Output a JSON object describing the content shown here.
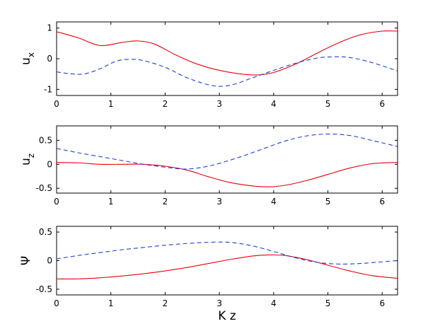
{
  "chart_data": [
    {
      "type": "line",
      "xlabel": "",
      "ylabel": "u",
      "ylabel_sub": "x",
      "xlim": [
        0,
        6.2832
      ],
      "ylim": [
        -1.2,
        1.2
      ],
      "xticks": [
        "0",
        "1",
        "2",
        "3",
        "4",
        "5",
        "6"
      ],
      "yticks": [
        "-1",
        "0",
        "1"
      ],
      "grid": false,
      "series": [
        {
          "style": "solid",
          "color": "#e8000b",
          "x": [
            0,
            0.4,
            0.8,
            1.2,
            1.5,
            1.8,
            2.2,
            2.6,
            3.0,
            3.4,
            3.7,
            4.0,
            4.4,
            4.8,
            5.2,
            5.6,
            6.0,
            6.2832
          ],
          "y": [
            0.88,
            0.68,
            0.43,
            0.53,
            0.58,
            0.48,
            0.12,
            -0.18,
            -0.38,
            -0.5,
            -0.53,
            -0.45,
            -0.18,
            0.18,
            0.52,
            0.78,
            0.9,
            0.9
          ]
        },
        {
          "style": "dashed",
          "color": "#1f3fd8",
          "x": [
            0,
            0.2,
            0.5,
            0.8,
            1.1,
            1.35,
            1.6,
            2.0,
            2.4,
            2.8,
            3.05,
            3.3,
            3.6,
            4.0,
            4.4,
            4.8,
            5.1,
            5.4,
            5.8,
            6.2832
          ],
          "y": [
            -0.43,
            -0.48,
            -0.5,
            -0.33,
            -0.08,
            -0.02,
            -0.06,
            -0.28,
            -0.62,
            -0.85,
            -0.9,
            -0.82,
            -0.63,
            -0.38,
            -0.15,
            0.02,
            0.06,
            0.04,
            -0.12,
            -0.4
          ]
        }
      ]
    },
    {
      "type": "line",
      "xlabel": "",
      "ylabel": "u",
      "ylabel_sub": "z",
      "xlim": [
        0,
        6.2832
      ],
      "ylim": [
        -0.6,
        0.8
      ],
      "xticks": [
        "0",
        "1",
        "2",
        "3",
        "4",
        "5",
        "6"
      ],
      "yticks": [
        "-0.5",
        "0",
        "0.5"
      ],
      "grid": false,
      "series": [
        {
          "style": "solid",
          "color": "#e8000b",
          "x": [
            0,
            0.4,
            0.8,
            1.2,
            1.6,
            2.0,
            2.4,
            2.8,
            3.2,
            3.6,
            3.9,
            4.2,
            4.6,
            5.0,
            5.4,
            5.8,
            6.2832
          ],
          "y": [
            0.04,
            0.03,
            0.0,
            0.0,
            0.0,
            -0.04,
            -0.12,
            -0.26,
            -0.38,
            -0.45,
            -0.47,
            -0.44,
            -0.34,
            -0.21,
            -0.08,
            0.01,
            0.04
          ]
        },
        {
          "style": "dashed",
          "color": "#1f3fd8",
          "x": [
            0,
            0.4,
            0.8,
            1.2,
            1.6,
            2.0,
            2.35,
            2.7,
            3.0,
            3.4,
            3.8,
            4.2,
            4.6,
            5.0,
            5.4,
            5.8,
            6.2832
          ],
          "y": [
            0.33,
            0.24,
            0.16,
            0.08,
            0.0,
            -0.06,
            -0.1,
            -0.06,
            0.02,
            0.16,
            0.32,
            0.48,
            0.59,
            0.63,
            0.6,
            0.5,
            0.37
          ]
        }
      ]
    },
    {
      "type": "line",
      "xlabel": "K z",
      "ylabel": "Ψ",
      "ylabel_sub": "",
      "xlim": [
        0,
        6.2832
      ],
      "ylim": [
        -0.6,
        0.6
      ],
      "xticks": [
        "0",
        "1",
        "2",
        "3",
        "4",
        "5",
        "6"
      ],
      "yticks": [
        "-0.5",
        "0",
        "0.5"
      ],
      "grid": false,
      "series": [
        {
          "style": "solid",
          "color": "#e8000b",
          "x": [
            0,
            0.4,
            0.8,
            1.2,
            1.6,
            2.0,
            2.4,
            2.8,
            3.2,
            3.6,
            3.9,
            4.2,
            4.6,
            5.0,
            5.4,
            5.8,
            6.2832
          ],
          "y": [
            -0.32,
            -0.32,
            -0.3,
            -0.27,
            -0.23,
            -0.18,
            -0.12,
            -0.05,
            0.02,
            0.08,
            0.1,
            0.09,
            0.02,
            -0.08,
            -0.18,
            -0.26,
            -0.31
          ]
        },
        {
          "style": "dashed",
          "color": "#1f3fd8",
          "x": [
            0,
            0.4,
            0.8,
            1.2,
            1.6,
            2.0,
            2.4,
            2.8,
            3.2,
            3.6,
            4.0,
            4.4,
            4.8,
            5.2,
            5.6,
            6.0,
            6.2832
          ],
          "y": [
            0.03,
            0.09,
            0.14,
            0.19,
            0.23,
            0.27,
            0.3,
            0.32,
            0.32,
            0.26,
            0.16,
            0.05,
            -0.03,
            -0.06,
            -0.05,
            -0.02,
            0.0
          ]
        }
      ]
    }
  ]
}
